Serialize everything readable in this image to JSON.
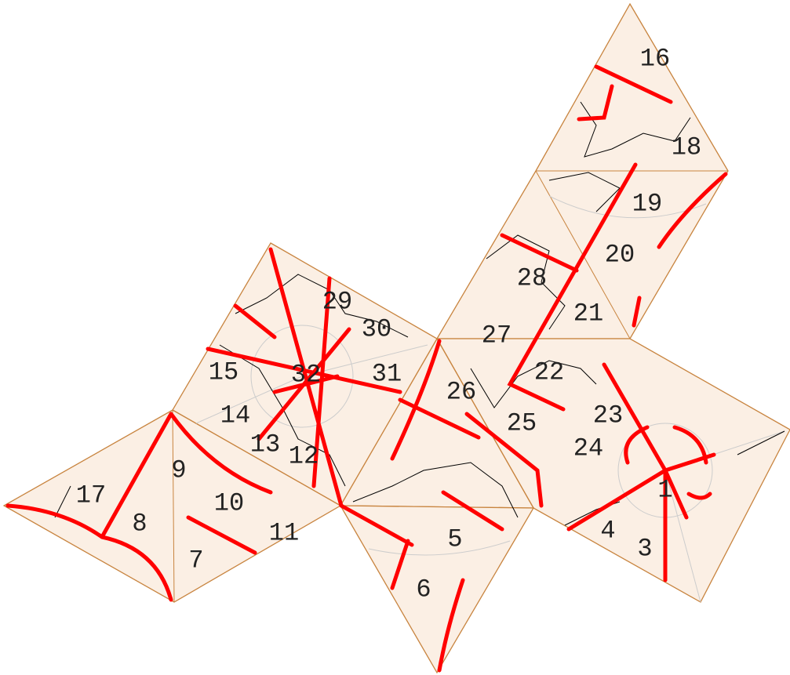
{
  "labels": [
    "16",
    "18",
    "19",
    "20",
    "28",
    "21",
    "27",
    "22",
    "26",
    "25",
    "23",
    "24",
    "1",
    "4",
    "3",
    "5",
    "6",
    "7",
    "8",
    "9",
    "10",
    "11",
    "12",
    "13",
    "14",
    "15",
    "17",
    "29",
    "30",
    "31",
    "32"
  ]
}
